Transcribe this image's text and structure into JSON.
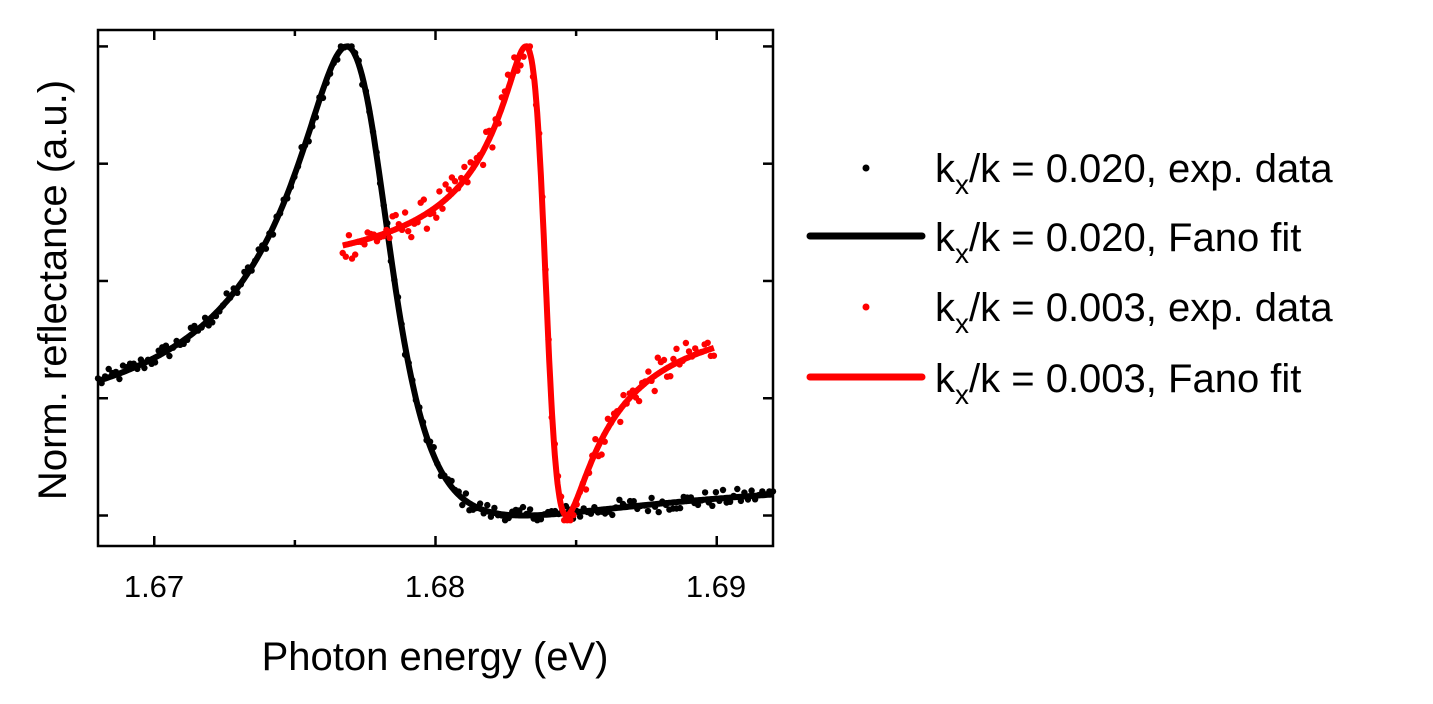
{
  "chart_data": {
    "type": "scatter",
    "title": "",
    "xlabel": "Photon energy (eV)",
    "ylabel": "Norm. reflectance (a.u.)",
    "xlim": [
      1.668,
      1.692
    ],
    "ylim": [
      -0.065,
      1.035
    ],
    "x_ticks": [
      1.67,
      1.68,
      1.69
    ],
    "x_tick_labels": [
      "1.67",
      "1.68",
      "1.69"
    ],
    "x_minor_ticks": [
      1.675,
      1.685
    ],
    "y_ticks": [
      0,
      0.25,
      0.5,
      0.75,
      1.0
    ],
    "y_tick_labels_shown": false,
    "grid": false,
    "legend_position": "right",
    "series": [
      {
        "name": "kx/k = 0.020, exp. data",
        "legend_main": "k",
        "legend_sub": "x",
        "legend_rest": "/k = 0.020, exp. data",
        "kind": "scatter",
        "color": "#000000",
        "x_range": [
          1.668,
          1.692
        ],
        "n_points": 190,
        "fano": {
          "e0": 1.6776,
          "gamma": 0.0041,
          "q": -2.7,
          "noise": 0.018
        }
      },
      {
        "name": "kx/k = 0.020, Fano fit",
        "legend_main": "k",
        "legend_sub": "x",
        "legend_rest": "/k = 0.020, Fano fit",
        "kind": "line",
        "color": "#000000",
        "x_range": [
          1.668,
          1.692
        ],
        "fano": {
          "e0": 1.6776,
          "gamma": 0.0041,
          "q": -2.7
        }
      },
      {
        "name": "kx/k = 0.003, exp. data",
        "legend_main": "k",
        "legend_sub": "x",
        "legend_rest": "/k = 0.003, exp. data",
        "kind": "scatter",
        "color": "#ff0000",
        "x_range": [
          1.6767,
          1.6899
        ],
        "n_points": 120,
        "fano": {
          "e0": 1.6839,
          "gamma": 0.00145,
          "q": -1.05,
          "noise": 0.035
        }
      },
      {
        "name": "kx/k = 0.003, Fano fit",
        "legend_main": "k",
        "legend_sub": "x",
        "legend_rest": "/k = 0.003, Fano fit",
        "kind": "line",
        "color": "#ff0000",
        "x_range": [
          1.6767,
          1.6899
        ],
        "fano": {
          "e0": 1.6839,
          "gamma": 0.00145,
          "q": -1.05
        }
      }
    ]
  }
}
